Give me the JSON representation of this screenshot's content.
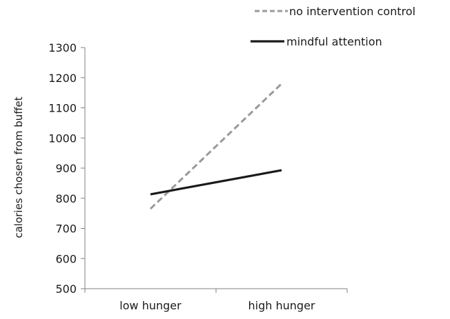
{
  "chart_data": {
    "type": "line",
    "ylabel": "calories chosen from buffet",
    "xlabel": "",
    "categories": [
      "low hunger",
      "high hunger"
    ],
    "ylim": [
      500,
      1300
    ],
    "yticks": [
      500,
      600,
      700,
      800,
      900,
      1000,
      1100,
      1200,
      1300
    ],
    "grid": false,
    "legend_position": "top-right",
    "series": [
      {
        "name": "no intervention control",
        "values": [
          765,
          1180
        ],
        "color": "#999999",
        "style": "dashed"
      },
      {
        "name": "mindful attention",
        "values": [
          813,
          893
        ],
        "color": "#1a1a1a",
        "style": "solid"
      }
    ]
  }
}
